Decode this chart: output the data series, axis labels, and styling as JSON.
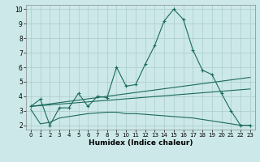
{
  "xlabel": "Humidex (Indice chaleur)",
  "xlim": [
    -0.5,
    23.5
  ],
  "ylim": [
    1.7,
    10.3
  ],
  "xticks": [
    0,
    1,
    2,
    3,
    4,
    5,
    6,
    7,
    8,
    9,
    10,
    11,
    12,
    13,
    14,
    15,
    16,
    17,
    18,
    19,
    20,
    21,
    22,
    23
  ],
  "yticks": [
    2,
    3,
    4,
    5,
    6,
    7,
    8,
    9,
    10
  ],
  "bg_color": "#cce8e8",
  "grid_color": "#aacccc",
  "line_color": "#1a6b5a",
  "series1_x": [
    0,
    1,
    2,
    3,
    4,
    5,
    6,
    7,
    8,
    9,
    10,
    11,
    12,
    13,
    14,
    15,
    16,
    17,
    18,
    19,
    20,
    21,
    22,
    23
  ],
  "series1_y": [
    3.3,
    3.8,
    2.0,
    3.2,
    3.2,
    4.2,
    3.3,
    4.0,
    3.9,
    6.0,
    4.7,
    4.8,
    6.2,
    7.5,
    9.2,
    10.0,
    9.3,
    7.2,
    5.8,
    5.5,
    4.2,
    3.0,
    2.0,
    2.0
  ],
  "series2_x": [
    0,
    23
  ],
  "series2_y": [
    3.3,
    5.3
  ],
  "series3_x": [
    0,
    23
  ],
  "series3_y": [
    3.3,
    4.5
  ],
  "series4_x": [
    0,
    1,
    2,
    3,
    4,
    5,
    6,
    7,
    8,
    9,
    10,
    11,
    12,
    13,
    14,
    15,
    16,
    17,
    18,
    19,
    20,
    21,
    22,
    23
  ],
  "series4_y": [
    3.1,
    2.1,
    2.2,
    2.5,
    2.6,
    2.7,
    2.8,
    2.85,
    2.9,
    2.9,
    2.8,
    2.8,
    2.75,
    2.7,
    2.65,
    2.6,
    2.55,
    2.5,
    2.4,
    2.3,
    2.2,
    2.1,
    2.0,
    2.0
  ]
}
